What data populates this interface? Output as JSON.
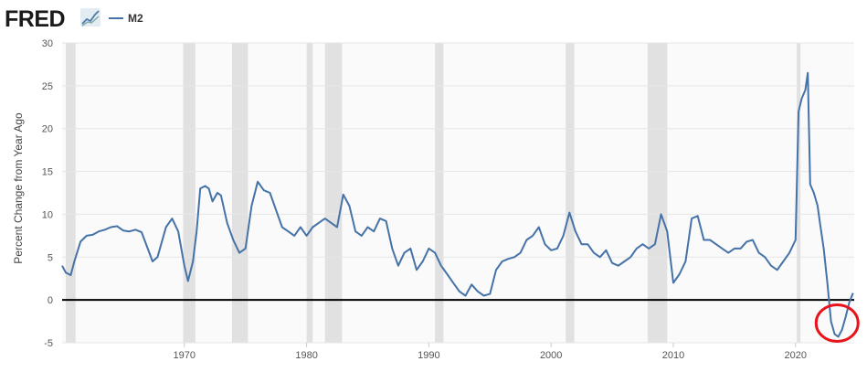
{
  "logo": {
    "text": "FRED"
  },
  "legend": {
    "label": "M2"
  },
  "colors": {
    "series": "#4572a7",
    "recession": "#e1e1e1",
    "plot_bg": "#fafafa",
    "grid": "#e6e6e6",
    "zero_line": "#000000",
    "highlight_circle": "#e8141c"
  },
  "chart_data": {
    "type": "line",
    "title": "",
    "xlabel": "",
    "ylabel": "Percent Change from Year Ago",
    "xlim": [
      1960,
      2024.8
    ],
    "ylim": [
      -5,
      30
    ],
    "x_ticks": [
      1970,
      1980,
      1990,
      2000,
      2010,
      2020
    ],
    "x_tick_labels": [
      "1970",
      "1980",
      "1990",
      "2000",
      "2010",
      "2020"
    ],
    "y_ticks": [
      -5,
      0,
      5,
      10,
      15,
      20,
      25,
      30
    ],
    "y_tick_labels": [
      "-5",
      "0",
      "5",
      "10",
      "15",
      "20",
      "25",
      "30"
    ],
    "grid": true,
    "legend": "top-left",
    "recessions": [
      [
        1960.3,
        1961.1
      ],
      [
        1969.9,
        1970.9
      ],
      [
        1973.9,
        1975.2
      ],
      [
        1980.0,
        1980.5
      ],
      [
        1981.5,
        1982.9
      ],
      [
        1990.5,
        1991.2
      ],
      [
        2001.2,
        2001.9
      ],
      [
        2007.9,
        2009.5
      ],
      [
        2020.1,
        2020.4
      ]
    ],
    "series": [
      {
        "name": "M2",
        "x": [
          1960.0,
          1960.3,
          1960.7,
          1961.0,
          1961.5,
          1962.0,
          1962.5,
          1963.0,
          1963.5,
          1964.0,
          1964.5,
          1965.0,
          1965.5,
          1966.0,
          1966.5,
          1967.0,
          1967.4,
          1967.8,
          1968.5,
          1969.0,
          1969.5,
          1970.0,
          1970.3,
          1970.7,
          1971.0,
          1971.3,
          1971.7,
          1972.0,
          1972.3,
          1972.7,
          1973.0,
          1973.5,
          1974.0,
          1974.5,
          1975.0,
          1975.5,
          1976.0,
          1976.5,
          1977.0,
          1977.5,
          1978.0,
          1978.5,
          1979.0,
          1979.5,
          1980.0,
          1980.5,
          1981.0,
          1981.5,
          1982.0,
          1982.5,
          1983.0,
          1983.5,
          1984.0,
          1984.5,
          1985.0,
          1985.5,
          1986.0,
          1986.5,
          1987.0,
          1987.5,
          1988.0,
          1988.5,
          1989.0,
          1989.5,
          1990.0,
          1990.5,
          1991.0,
          1991.5,
          1992.0,
          1992.5,
          1993.0,
          1993.5,
          1994.0,
          1994.5,
          1995.0,
          1995.5,
          1996.0,
          1996.5,
          1997.0,
          1997.5,
          1998.0,
          1998.5,
          1999.0,
          1999.5,
          2000.0,
          2000.5,
          2001.0,
          2001.5,
          2002.0,
          2002.5,
          2003.0,
          2003.5,
          2004.0,
          2004.5,
          2005.0,
          2005.5,
          2006.0,
          2006.5,
          2007.0,
          2007.5,
          2008.0,
          2008.5,
          2009.0,
          2009.5,
          2010.0,
          2010.5,
          2011.0,
          2011.5,
          2012.0,
          2012.5,
          2013.0,
          2013.5,
          2014.0,
          2014.5,
          2015.0,
          2015.5,
          2016.0,
          2016.5,
          2017.0,
          2017.5,
          2018.0,
          2018.5,
          2019.0,
          2019.5,
          2020.0,
          2020.25,
          2020.5,
          2020.8,
          2021.0,
          2021.2,
          2021.5,
          2021.8,
          2022.0,
          2022.3,
          2022.6,
          2022.9,
          2023.2,
          2023.5,
          2023.8,
          2024.1,
          2024.4,
          2024.7
        ],
        "values": [
          4.0,
          3.2,
          2.9,
          4.5,
          6.8,
          7.5,
          7.6,
          8.0,
          8.2,
          8.5,
          8.6,
          8.1,
          8.0,
          8.2,
          7.9,
          6.0,
          4.5,
          5.0,
          8.5,
          9.5,
          8.0,
          4.0,
          2.2,
          4.5,
          8.0,
          13.0,
          13.3,
          13.0,
          11.5,
          12.5,
          12.2,
          9.0,
          7.0,
          5.5,
          6.0,
          11.0,
          13.8,
          12.8,
          12.5,
          10.5,
          8.5,
          8.0,
          7.5,
          8.5,
          7.5,
          8.5,
          9.0,
          9.5,
          9.0,
          8.5,
          12.3,
          11.0,
          8.0,
          7.5,
          8.5,
          8.0,
          9.5,
          9.2,
          6.0,
          4.0,
          5.5,
          6.0,
          3.5,
          4.5,
          6.0,
          5.5,
          4.0,
          3.0,
          2.0,
          1.0,
          0.5,
          1.8,
          1.0,
          0.5,
          0.7,
          3.5,
          4.5,
          4.8,
          5.0,
          5.5,
          7.0,
          7.5,
          8.5,
          6.5,
          5.8,
          6.0,
          7.5,
          10.2,
          8.0,
          6.5,
          6.5,
          5.5,
          5.0,
          5.8,
          4.3,
          4.0,
          4.5,
          5.0,
          6.0,
          6.5,
          6.0,
          6.5,
          10.0,
          8.0,
          2.0,
          3.0,
          4.5,
          9.5,
          9.8,
          7.0,
          7.0,
          6.5,
          6.0,
          5.5,
          6.0,
          6.0,
          6.8,
          7.0,
          5.5,
          5.0,
          4.0,
          3.5,
          4.5,
          5.5,
          7.0,
          22.0,
          23.5,
          24.5,
          26.5,
          13.5,
          12.5,
          11.0,
          9.0,
          6.0,
          2.0,
          -2.5,
          -4.0,
          -4.3,
          -3.5,
          -2.0,
          -0.3,
          0.8
        ]
      }
    ]
  }
}
